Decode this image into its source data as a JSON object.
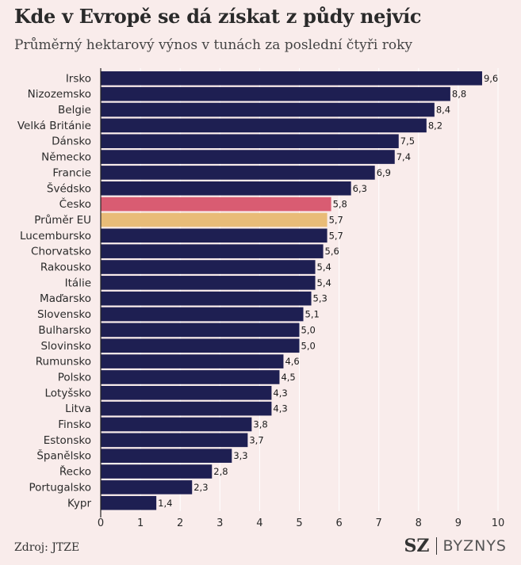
{
  "title": "Kde v Evropě se dá získat z půdy nejvíc",
  "subtitle": "Průměrný hektarový výnos v tunách za poslední čtyři roky",
  "source": "Zdroj: JTZE",
  "brand": {
    "logo": "SZ",
    "section": "BYZNYS"
  },
  "colors": {
    "background": "#f9eceb",
    "bar": "#1e1f52",
    "highlight_cz": "#d95c72",
    "highlight_eu": "#e9bc78",
    "grid": "#ffffff",
    "text": "#2b2b2b"
  },
  "chart_data": {
    "type": "bar",
    "orientation": "horizontal",
    "categories": [
      "Irsko",
      "Nizozemsko",
      "Belgie",
      "Velká Británie",
      "Dánsko",
      "Německo",
      "Francie",
      "Švédsko",
      "Česko",
      "Průměr EU",
      "Lucembursko",
      "Chorvatsko",
      "Rakousko",
      "Itálie",
      "Maďarsko",
      "Slovensko",
      "Bulharsko",
      "Slovinsko",
      "Rumunsko",
      "Polsko",
      "Lotyšsko",
      "Litva",
      "Finsko",
      "Estonsko",
      "Španělsko",
      "Řecko",
      "Portugalsko",
      "Kypr"
    ],
    "values": [
      9.6,
      8.8,
      8.4,
      8.2,
      7.5,
      7.4,
      6.9,
      6.3,
      5.8,
      5.7,
      5.7,
      5.6,
      5.4,
      5.4,
      5.3,
      5.1,
      5.0,
      5.0,
      4.6,
      4.5,
      4.3,
      4.3,
      3.8,
      3.7,
      3.3,
      2.8,
      2.3,
      1.4
    ],
    "value_labels": [
      "9,6",
      "8,8",
      "8,4",
      "8,2",
      "7,5",
      "7,4",
      "6,9",
      "6,3",
      "5,8",
      "5,7",
      "5,7",
      "5,6",
      "5,4",
      "5,4",
      "5,3",
      "5,1",
      "5,0",
      "5,0",
      "4,6",
      "4,5",
      "4,3",
      "4,3",
      "3,8",
      "3,7",
      "3,3",
      "2,8",
      "2,3",
      "1,4"
    ],
    "highlights": {
      "Česko": "#d95c72",
      "Průměr EU": "#e9bc78"
    },
    "xlim": [
      0,
      10
    ],
    "xticks": [
      "0",
      "1",
      "2",
      "3",
      "4",
      "5",
      "6",
      "7",
      "8",
      "9",
      "10"
    ],
    "grid": true
  }
}
